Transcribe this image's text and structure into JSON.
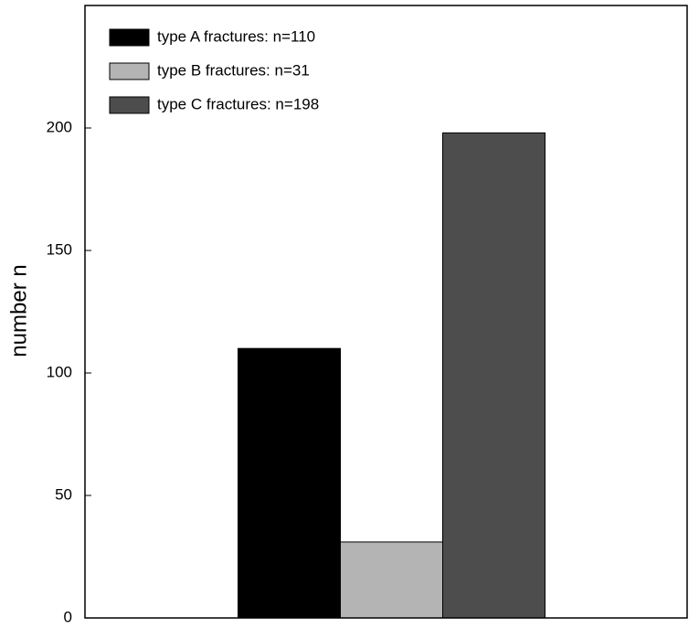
{
  "chart_data": {
    "type": "bar",
    "ylabel": "number n",
    "categories": [
      null
    ],
    "series": [
      {
        "name": "type A fractures: n=110",
        "color": "#000000",
        "values": [
          110
        ]
      },
      {
        "name": "type B fractures: n=31",
        "color": "#b4b4b4",
        "values": [
          31
        ]
      },
      {
        "name": "type C fractures: n=198",
        "color": "#4d4d4d",
        "values": [
          198
        ]
      }
    ],
    "ylim": [
      0,
      250
    ],
    "yticks": [
      0,
      50,
      100,
      150,
      200
    ],
    "grid": false,
    "legend": "upper left"
  }
}
